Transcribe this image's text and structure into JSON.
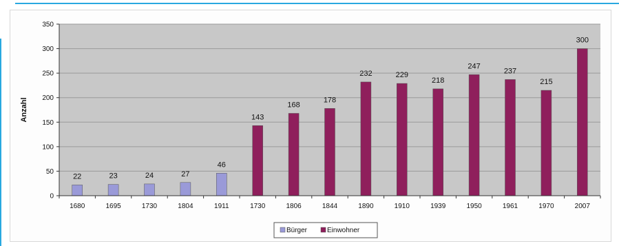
{
  "chart_data": {
    "type": "bar",
    "title": "",
    "xlabel": "",
    "ylabel": "Anzahl",
    "ylim": [
      0,
      350
    ],
    "yticks": [
      0,
      50,
      100,
      150,
      200,
      250,
      300,
      350
    ],
    "grid": true,
    "legend_position": "bottom",
    "categories": [
      "1680",
      "1695",
      "1730",
      "1804",
      "1911",
      "1730",
      "1806",
      "1844",
      "1890",
      "1910",
      "1939",
      "1950",
      "1961",
      "1970",
      "2007"
    ],
    "series": [
      {
        "name": "Bürger",
        "color": "#9a9ad8",
        "values": [
          22,
          23,
          24,
          27,
          46,
          null,
          null,
          null,
          null,
          null,
          null,
          null,
          null,
          null,
          null
        ],
        "labels": [
          "22",
          "23",
          "24",
          "27",
          "46",
          "",
          "",
          "",
          "",
          "",
          "",
          "",
          "",
          "",
          ""
        ]
      },
      {
        "name": "Einwohner",
        "color": "#8f1f5c",
        "values": [
          null,
          null,
          null,
          null,
          null,
          143,
          168,
          178,
          232,
          229,
          218,
          247,
          237,
          215,
          300
        ],
        "labels": [
          "",
          "",
          "",
          "",
          "",
          "143",
          "168",
          "178",
          "232",
          "229",
          "218",
          "247",
          "237",
          "215",
          "300"
        ]
      }
    ],
    "colors": {
      "plot_background": "#c8c8c8",
      "gridline": "#9a9a9a",
      "frame_accent": "#29a8e0"
    }
  }
}
